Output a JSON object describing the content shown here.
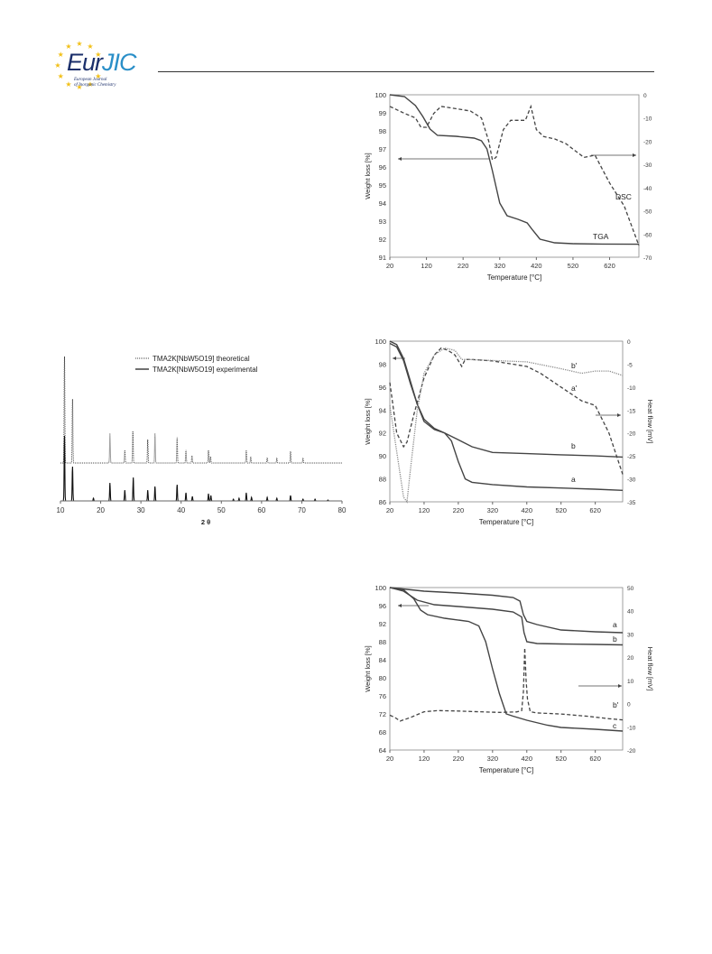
{
  "header": {
    "logo_main_part1": "Eur",
    "logo_main_part2": "JIC",
    "logo_sub_line1": "European Journal",
    "logo_sub_line2": "of Inorganic Chemistry",
    "colors": {
      "logo_dark": "#1b2f6b",
      "logo_light": "#2a8fc8",
      "stars": "#f2c018"
    }
  },
  "chart_data": [
    {
      "type": "line",
      "xlabel": "Temperature [°C]",
      "ylabel": "Weight loss [%]",
      "y2label": "",
      "xticks": [
        20,
        120,
        220,
        320,
        420,
        520,
        620
      ],
      "yticks": [
        91,
        92,
        93,
        94,
        95,
        96,
        97,
        98,
        99,
        100
      ],
      "y2ticks": [
        0,
        -10,
        -20,
        -30,
        -40,
        -50,
        -60,
        -70
      ],
      "xlim": [
        20,
        700
      ],
      "ylim": [
        91,
        100
      ],
      "y2lim": [
        -70,
        0
      ],
      "series": [
        {
          "name": "TGA",
          "axis": "left",
          "style": "solid",
          "x": [
            20,
            60,
            90,
            110,
            130,
            150,
            200,
            250,
            270,
            285,
            300,
            320,
            340,
            370,
            395,
            410,
            430,
            470,
            520,
            600,
            700
          ],
          "y": [
            100,
            99.9,
            99.4,
            98.8,
            98.1,
            97.75,
            97.7,
            97.6,
            97.45,
            97.0,
            95.8,
            94.0,
            93.3,
            93.1,
            92.9,
            92.5,
            92.0,
            91.8,
            91.75,
            91.73,
            91.72
          ]
        },
        {
          "name": "DSC",
          "axis": "right",
          "style": "dashed",
          "x": [
            20,
            60,
            90,
            105,
            120,
            140,
            160,
            200,
            240,
            270,
            290,
            300,
            310,
            330,
            350,
            370,
            390,
            405,
            420,
            440,
            470,
            500,
            550,
            580,
            620,
            660,
            700
          ],
          "y": [
            -5,
            -8,
            -10,
            -14,
            -14,
            -8,
            -5,
            -6,
            -7,
            -10,
            -20,
            -28,
            -27,
            -15,
            -11,
            -11,
            -11,
            -5,
            -15,
            -18,
            -19,
            -21,
            -27,
            -26,
            -38,
            -48,
            -65
          ]
        }
      ]
    },
    {
      "type": "line",
      "title": "",
      "xlabel": "2 θ",
      "xticks": [
        10,
        20,
        30,
        40,
        50,
        60,
        70,
        80
      ],
      "xlim": [
        10,
        80
      ],
      "series": [
        {
          "name": "TMA2K[NbW5O19] theoretical",
          "style": "dotted",
          "peaks": [
            {
              "x": 11.0,
              "h": 1.0
            },
            {
              "x": 13.0,
              "h": 0.6
            },
            {
              "x": 22.3,
              "h": 0.28
            },
            {
              "x": 26.0,
              "h": 0.12
            },
            {
              "x": 28.0,
              "h": 0.3
            },
            {
              "x": 31.7,
              "h": 0.22
            },
            {
              "x": 33.5,
              "h": 0.28
            },
            {
              "x": 39.0,
              "h": 0.24
            },
            {
              "x": 41.2,
              "h": 0.12
            },
            {
              "x": 42.7,
              "h": 0.07
            },
            {
              "x": 46.8,
              "h": 0.12
            },
            {
              "x": 47.3,
              "h": 0.06
            },
            {
              "x": 56.2,
              "h": 0.12
            },
            {
              "x": 57.3,
              "h": 0.06
            },
            {
              "x": 61.4,
              "h": 0.05
            },
            {
              "x": 63.8,
              "h": 0.04
            },
            {
              "x": 67.2,
              "h": 0.11
            },
            {
              "x": 70.3,
              "h": 0.04
            }
          ]
        },
        {
          "name": "TMA2K[NbW5O19] experimental",
          "style": "solid",
          "peaks": [
            {
              "x": 11.0,
              "h": 0.72
            },
            {
              "x": 13.0,
              "h": 0.38
            },
            {
              "x": 18.2,
              "h": 0.03
            },
            {
              "x": 22.3,
              "h": 0.2
            },
            {
              "x": 26.0,
              "h": 0.12
            },
            {
              "x": 28.1,
              "h": 0.26
            },
            {
              "x": 31.7,
              "h": 0.12
            },
            {
              "x": 33.5,
              "h": 0.16
            },
            {
              "x": 39.0,
              "h": 0.18
            },
            {
              "x": 41.2,
              "h": 0.09
            },
            {
              "x": 42.8,
              "h": 0.05
            },
            {
              "x": 46.8,
              "h": 0.08
            },
            {
              "x": 47.4,
              "h": 0.06
            },
            {
              "x": 53.0,
              "h": 0.02
            },
            {
              "x": 54.4,
              "h": 0.03
            },
            {
              "x": 56.2,
              "h": 0.09
            },
            {
              "x": 57.5,
              "h": 0.04
            },
            {
              "x": 61.4,
              "h": 0.04
            },
            {
              "x": 63.8,
              "h": 0.03
            },
            {
              "x": 67.2,
              "h": 0.06
            },
            {
              "x": 70.3,
              "h": 0.02
            },
            {
              "x": 73.3,
              "h": 0.02
            },
            {
              "x": 76.5,
              "h": 0.01
            }
          ]
        }
      ]
    },
    {
      "type": "line",
      "xlabel": "Temperature [°C]",
      "ylabel": "Weight loss [%]",
      "y2label": "Heat flow [mV]",
      "xticks": [
        20,
        120,
        220,
        320,
        420,
        520,
        620
      ],
      "yticks": [
        86,
        88,
        90,
        92,
        94,
        96,
        98,
        100
      ],
      "y2ticks": [
        0,
        -5,
        -10,
        -15,
        -20,
        -25,
        -30,
        -35
      ],
      "xlim": [
        20,
        700
      ],
      "ylim": [
        86,
        100
      ],
      "y2lim": [
        -35,
        0
      ],
      "series": [
        {
          "name": "a",
          "axis": "left",
          "style": "solid",
          "x": [
            20,
            40,
            60,
            80,
            100,
            120,
            150,
            180,
            200,
            220,
            240,
            260,
            320,
            420,
            520,
            620,
            700
          ],
          "y": [
            100,
            99.7,
            98.5,
            96.5,
            94.5,
            93.0,
            92.3,
            92.0,
            91.3,
            89.5,
            88.0,
            87.7,
            87.5,
            87.3,
            87.2,
            87.1,
            87.0
          ]
        },
        {
          "name": "b",
          "axis": "left",
          "style": "solid",
          "x": [
            20,
            40,
            60,
            80,
            100,
            120,
            150,
            180,
            220,
            260,
            320,
            420,
            520,
            620,
            700
          ],
          "y": [
            99.8,
            99.5,
            98.3,
            96.3,
            94.5,
            93.2,
            92.4,
            92.0,
            91.4,
            90.8,
            90.3,
            90.2,
            90.1,
            90.0,
            89.9
          ]
        },
        {
          "name": "a'",
          "axis": "right",
          "style": "dashed",
          "x": [
            20,
            40,
            60,
            70,
            90,
            120,
            150,
            170,
            190,
            210,
            230,
            240,
            260,
            320,
            420,
            460,
            520,
            580,
            620,
            660,
            700
          ],
          "y": [
            -9,
            -20,
            -23,
            -22,
            -16,
            -8,
            -3,
            -1.5,
            -2,
            -3,
            -5.5,
            -4,
            -4,
            -4.3,
            -5.5,
            -7,
            -10,
            -13,
            -14,
            -20,
            -29
          ]
        },
        {
          "name": "b'",
          "axis": "right",
          "style": "dotted",
          "x": [
            20,
            40,
            60,
            70,
            80,
            100,
            120,
            150,
            180,
            210,
            230,
            250,
            320,
            420,
            520,
            580,
            620,
            660,
            700
          ],
          "y": [
            -14,
            -24,
            -34,
            -35,
            -28,
            -15,
            -7,
            -3,
            -1.5,
            -2,
            -4,
            -4,
            -4.2,
            -4.5,
            -6,
            -7,
            -6.5,
            -6.5,
            -7.5
          ]
        }
      ],
      "labels": {
        "a": "a",
        "b": "b",
        "a_prime": "a'",
        "b_prime": "b'"
      }
    },
    {
      "type": "line",
      "xlabel": "Temperature [°C]",
      "ylabel": "Weight loss [%]",
      "y2label": "Heat flow [mV]",
      "xticks": [
        20,
        120,
        220,
        320,
        420,
        520,
        620
      ],
      "yticks": [
        64,
        68,
        72,
        76,
        80,
        84,
        88,
        92,
        96,
        100
      ],
      "y2ticks": [
        50,
        40,
        30,
        20,
        10,
        0,
        -10,
        -20
      ],
      "xlim": [
        20,
        700
      ],
      "ylim": [
        64,
        100
      ],
      "y2lim": [
        -20,
        50
      ],
      "series": [
        {
          "name": "a",
          "axis": "left",
          "style": "solid",
          "x": [
            20,
            70,
            120,
            220,
            320,
            380,
            400,
            410,
            420,
            450,
            520,
            620,
            700
          ],
          "y": [
            100,
            99.6,
            99.2,
            98.8,
            98.3,
            97.8,
            97.0,
            94.0,
            92.5,
            91.8,
            90.6,
            90.2,
            90.0
          ]
        },
        {
          "name": "b",
          "axis": "left",
          "style": "solid",
          "x": [
            20,
            60,
            100,
            150,
            220,
            320,
            380,
            405,
            412,
            420,
            450,
            520,
            620,
            700
          ],
          "y": [
            100,
            99.2,
            97.2,
            96.2,
            95.8,
            95.2,
            94.6,
            93.5,
            90.0,
            88.0,
            87.6,
            87.5,
            87.4,
            87.3
          ]
        },
        {
          "name": "c",
          "axis": "left",
          "style": "solid",
          "x": [
            20,
            60,
            90,
            110,
            130,
            180,
            250,
            280,
            300,
            320,
            340,
            360,
            380,
            420,
            480,
            520,
            620,
            700
          ],
          "y": [
            100,
            99.5,
            97.5,
            95.0,
            94.0,
            93.2,
            92.5,
            91.5,
            88.0,
            82.0,
            76.5,
            72.0,
            71.5,
            70.6,
            69.5,
            69.0,
            68.6,
            68.2
          ]
        },
        {
          "name": "b'",
          "axis": "right",
          "style": "dashed",
          "x": [
            20,
            35,
            50,
            80,
            120,
            160,
            220,
            280,
            340,
            390,
            405,
            410,
            414,
            418,
            422,
            430,
            450,
            520,
            600,
            660,
            700
          ],
          "y": [
            -5,
            -6,
            -7.5,
            -6,
            -3.5,
            -3,
            -3.2,
            -3.5,
            -3.8,
            -3.6,
            -3,
            5,
            24,
            10,
            2,
            -3.5,
            -4,
            -4.5,
            -5.5,
            -6.5,
            -7
          ]
        }
      ],
      "labels": {
        "a": "a",
        "b": "b",
        "c": "c",
        "b_prime": "b'"
      }
    }
  ]
}
